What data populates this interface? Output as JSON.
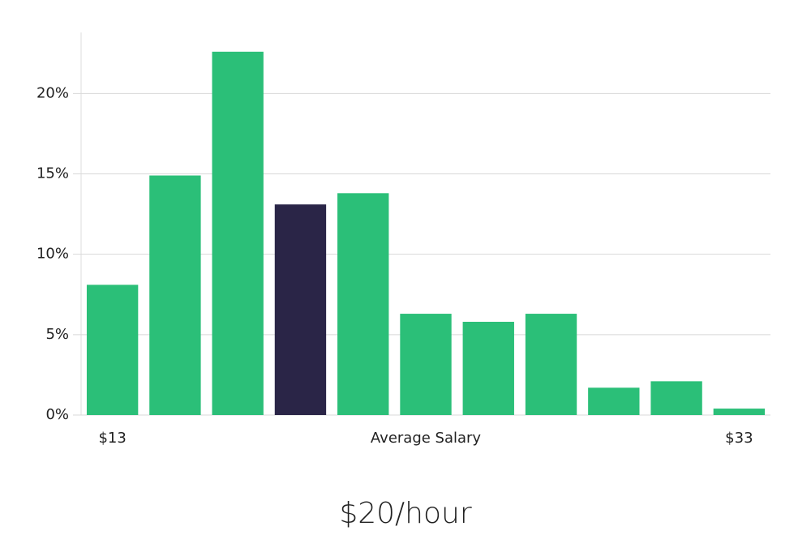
{
  "chart_data": {
    "type": "bar",
    "categories": [
      "$13",
      null,
      null,
      null,
      null,
      null,
      null,
      null,
      null,
      null,
      "$33"
    ],
    "values": [
      8.1,
      14.9,
      22.6,
      13.1,
      13.8,
      6.3,
      5.8,
      6.3,
      1.7,
      2.1,
      0.4
    ],
    "colors": [
      "#2bbf78",
      "#2bbf78",
      "#2bbf78",
      "#2a2547",
      "#2bbf78",
      "#2bbf78",
      "#2bbf78",
      "#2bbf78",
      "#2bbf78",
      "#2bbf78",
      "#2bbf78"
    ],
    "xlabel": "Average Salary",
    "subtitle": "$20/hour",
    "ylim": [
      0,
      23.8
    ],
    "yticks": [
      {
        "value": 0,
        "label": "0%"
      },
      {
        "value": 5,
        "label": "5%"
      },
      {
        "value": 10,
        "label": "10%"
      },
      {
        "value": 15,
        "label": "15%"
      },
      {
        "value": 20,
        "label": "20%"
      }
    ],
    "grid": true
  }
}
